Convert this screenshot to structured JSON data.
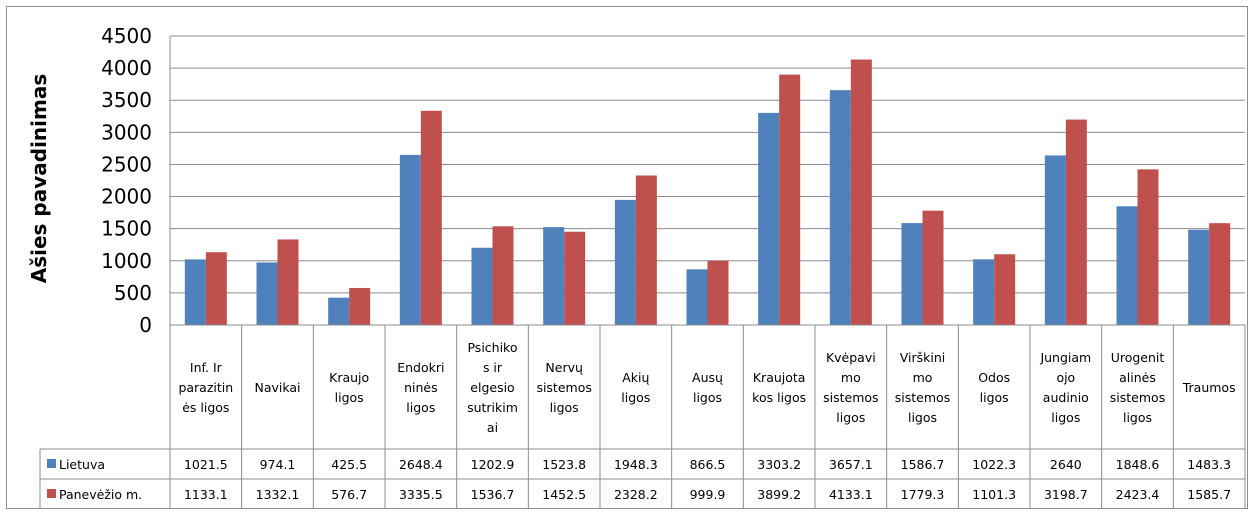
{
  "chart_data": {
    "type": "bar",
    "title": "",
    "xlabel": "",
    "ylabel": "Ašies pavadinimas",
    "ylim": [
      0,
      4500
    ],
    "yticks": [
      0,
      500,
      1000,
      1500,
      2000,
      2500,
      3000,
      3500,
      4000,
      4500
    ],
    "grid": true,
    "legend": "data-table",
    "categories": [
      [
        "Inf. Ir",
        "parazitin",
        "ės ligos"
      ],
      [
        "Navikai"
      ],
      [
        "Kraujo",
        "ligos"
      ],
      [
        "Endokri",
        "ninės",
        "ligos"
      ],
      [
        "Psichiko",
        "s ir",
        "elgesio",
        "sutrikim",
        "ai"
      ],
      [
        "Nervų",
        "sistemos",
        "ligos"
      ],
      [
        "Akių",
        "ligos"
      ],
      [
        "Ausų",
        "ligos"
      ],
      [
        "Kraujota",
        "kos ligos"
      ],
      [
        "Kvėpavi",
        "mo",
        "sistemos",
        "ligos"
      ],
      [
        "Virškini",
        "mo",
        "sistemos",
        "ligos"
      ],
      [
        "Odos",
        "ligos"
      ],
      [
        "Jungiam",
        "ojo",
        "audinio",
        "ligos"
      ],
      [
        "Urogenit",
        "alinės",
        "sistemos",
        "ligos"
      ],
      [
        "Traumos"
      ]
    ],
    "series": [
      {
        "name": "Lietuva",
        "color": "#4f81bd",
        "values": [
          1021.5,
          974.1,
          425.5,
          2648.4,
          1202.9,
          1523.8,
          1948.3,
          866.5,
          3303.2,
          3657.1,
          1586.7,
          1022.3,
          2640,
          1848.6,
          1483.3
        ],
        "labels": [
          "1021.5",
          "974.1",
          "425.5",
          "2648.4",
          "1202.9",
          "1523.8",
          "1948.3",
          "866.5",
          "3303.2",
          "3657.1",
          "1586.7",
          "1022.3",
          "2640",
          "1848.6",
          "1483.3"
        ]
      },
      {
        "name": "Panevėžio m.",
        "color": "#c0504d",
        "values": [
          1133.1,
          1332.1,
          576.7,
          3335.5,
          1536.7,
          1452.5,
          2328.2,
          999.9,
          3899.2,
          4133.1,
          1779.3,
          1101.3,
          3198.7,
          2423.4,
          1585.7
        ],
        "labels": [
          "1133.1",
          "1332.1",
          "576.7",
          "3335.5",
          "1536.7",
          "1452.5",
          "2328.2",
          "999.9",
          "3899.2",
          "4133.1",
          "1779.3",
          "1101.3",
          "3198.7",
          "2423.4",
          "1585.7"
        ]
      }
    ]
  }
}
